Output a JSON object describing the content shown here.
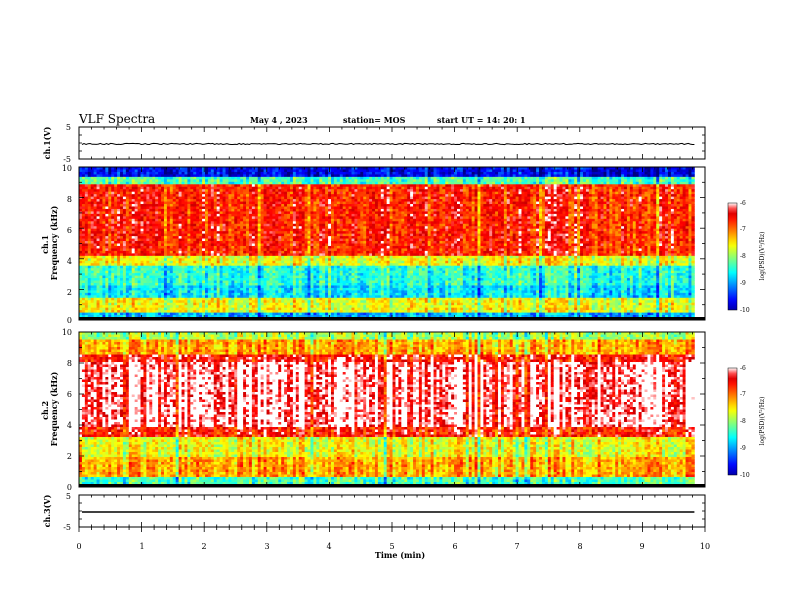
{
  "header": {
    "title": "VLF Spectra",
    "date": "May 4 , 2023",
    "station": "station= MOS",
    "start_ut": "start UT =  14: 20: 1"
  },
  "chart_data": [
    {
      "type": "line",
      "panel": "ch1-waveform",
      "ylabel": "ch.1(V)",
      "ylim": [
        -5,
        5
      ],
      "yticks": [
        "5",
        "-5"
      ],
      "xlim": [
        0,
        10
      ],
      "level": -0.3
    },
    {
      "type": "heatmap",
      "panel": "ch1-spectrogram",
      "ylabel": "ch.1\nFrequency (kHz)",
      "ylim": [
        0,
        10
      ],
      "yticks": [
        "0",
        "2",
        "4",
        "6",
        "8",
        "10"
      ],
      "xlim": [
        0,
        10
      ],
      "colorbar": {
        "label": "log(PSD)(V²/Hz)",
        "range": [
          -10,
          -6
        ],
        "ticks": [
          "-6",
          "-7",
          "-8",
          "-9",
          "-10"
        ]
      }
    },
    {
      "type": "heatmap",
      "panel": "ch2-spectrogram",
      "ylabel": "ch.2\nFrequency (kHz)",
      "ylim": [
        0,
        10
      ],
      "yticks": [
        "0",
        "2",
        "4",
        "6",
        "8",
        "10"
      ],
      "xlim": [
        0,
        10
      ],
      "colorbar": {
        "label": "log(PSD)(V²/Hz)",
        "range": [
          -10,
          -6
        ],
        "ticks": [
          "-6",
          "-7",
          "-8",
          "-9",
          "-10"
        ]
      }
    },
    {
      "type": "line",
      "panel": "ch3-waveform",
      "ylabel": "ch.3(V)",
      "ylim": [
        -5,
        5
      ],
      "yticks": [
        "5",
        "-5"
      ],
      "xlim": [
        0,
        10
      ],
      "level": -0.3,
      "xlabel": "Time  (min)",
      "xticks": [
        "0",
        "1",
        "2",
        "3",
        "4",
        "5",
        "6",
        "7",
        "8",
        "9",
        "10"
      ]
    }
  ]
}
